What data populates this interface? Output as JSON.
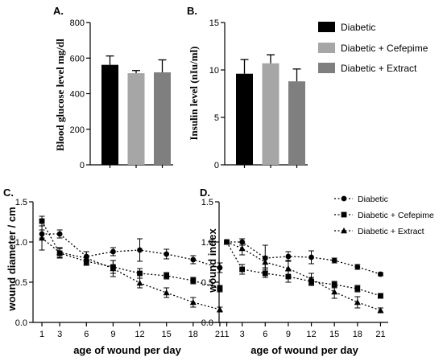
{
  "colors": {
    "diabetic": "#000000",
    "diabetic_cefepime": "#a6a6a6",
    "diabetic_extract": "#7f7f7f",
    "error_bar": "#000000"
  },
  "chart_data": [
    {
      "panel": "A.",
      "type": "bar",
      "categories": [
        "Diabetic",
        "Diabetic + Cefepime",
        "Diabetic + Extract"
      ],
      "values": [
        562,
        515,
        520
      ],
      "errors": [
        50,
        15,
        70
      ],
      "ylabel": "Blood glucose level mg/dl",
      "ylim": [
        0,
        800
      ],
      "yticks": [
        0,
        200,
        400,
        600,
        800
      ],
      "legend": "none",
      "grid": false
    },
    {
      "panel": "B.",
      "type": "bar",
      "categories": [
        "Diabetic",
        "Diabetic + Cefepime",
        "Diabetic + Extract"
      ],
      "values": [
        9.6,
        10.7,
        8.8
      ],
      "errors": [
        1.5,
        0.9,
        1.3
      ],
      "ylabel": "Insulin level (nIu/ml)",
      "ylim": [
        0,
        15
      ],
      "yticks": [
        0,
        5,
        10,
        15
      ],
      "legend": "right",
      "legend_entries": [
        "Diabetic",
        "Diabetic + Cefepime",
        "Diabetic + Extract"
      ],
      "grid": false
    },
    {
      "panel": "C.",
      "type": "line",
      "x": [
        1,
        3,
        6,
        9,
        12,
        15,
        18,
        21
      ],
      "xlabel": "age of wound per day",
      "ylabel": "wound diameter / cm",
      "xlim": [
        0,
        22
      ],
      "ylim": [
        0,
        1.5
      ],
      "yticks": [
        0.0,
        0.5,
        1.0,
        1.5
      ],
      "series": [
        {
          "name": "Diabetic",
          "marker": "circle",
          "values": [
            1.1,
            1.1,
            0.82,
            0.88,
            0.9,
            0.85,
            0.78,
            0.68
          ],
          "errors": [
            0.05,
            0.05,
            0.06,
            0.05,
            0.14,
            0.06,
            0.05,
            0.06
          ]
        },
        {
          "name": "Diabetic + Cefepime",
          "marker": "square",
          "values": [
            1.26,
            0.86,
            0.76,
            0.69,
            0.61,
            0.58,
            0.52,
            0.42
          ],
          "errors": [
            0.06,
            0.06,
            0.05,
            0.08,
            0.06,
            0.04,
            0.04,
            0.04
          ]
        },
        {
          "name": "Diabetic + Extract",
          "marker": "triangle",
          "values": [
            1.05,
            0.87,
            0.8,
            0.67,
            0.49,
            0.37,
            0.25,
            0.16
          ],
          "errors": [
            0.15,
            0.06,
            0.08,
            0.1,
            0.06,
            0.06,
            0.06,
            0.03
          ]
        }
      ],
      "grid": false
    },
    {
      "panel": "D.",
      "type": "line",
      "x": [
        1,
        3,
        6,
        9,
        12,
        15,
        18,
        21
      ],
      "xlabel": "age of wound per day",
      "ylabel": "wound index",
      "xlim": [
        0,
        22
      ],
      "ylim": [
        0,
        1.5
      ],
      "yticks": [
        0.0,
        0.5,
        1.0,
        1.5
      ],
      "legend": "top-right",
      "legend_entries": [
        "Diabetic",
        "Diabetic + Cefepime",
        "Diabetic + Extract"
      ],
      "series": [
        {
          "name": "Diabetic",
          "marker": "circle",
          "values": [
            1.0,
            1.0,
            0.8,
            0.82,
            0.81,
            0.77,
            0.69,
            0.6
          ],
          "errors": [
            0.0,
            0.04,
            0.16,
            0.06,
            0.08,
            0.03,
            0.03,
            0.02
          ]
        },
        {
          "name": "Diabetic + Cefepime",
          "marker": "square",
          "values": [
            1.0,
            0.66,
            0.61,
            0.57,
            0.51,
            0.47,
            0.42,
            0.33
          ],
          "errors": [
            0.0,
            0.06,
            0.05,
            0.07,
            0.05,
            0.04,
            0.04,
            0.03
          ]
        },
        {
          "name": "Diabetic + Extract",
          "marker": "triangle",
          "values": [
            1.0,
            0.92,
            0.75,
            0.67,
            0.54,
            0.38,
            0.25,
            0.15
          ],
          "errors": [
            0.0,
            0.08,
            0.07,
            0.1,
            0.07,
            0.08,
            0.07,
            0.03
          ]
        }
      ],
      "grid": false
    }
  ]
}
